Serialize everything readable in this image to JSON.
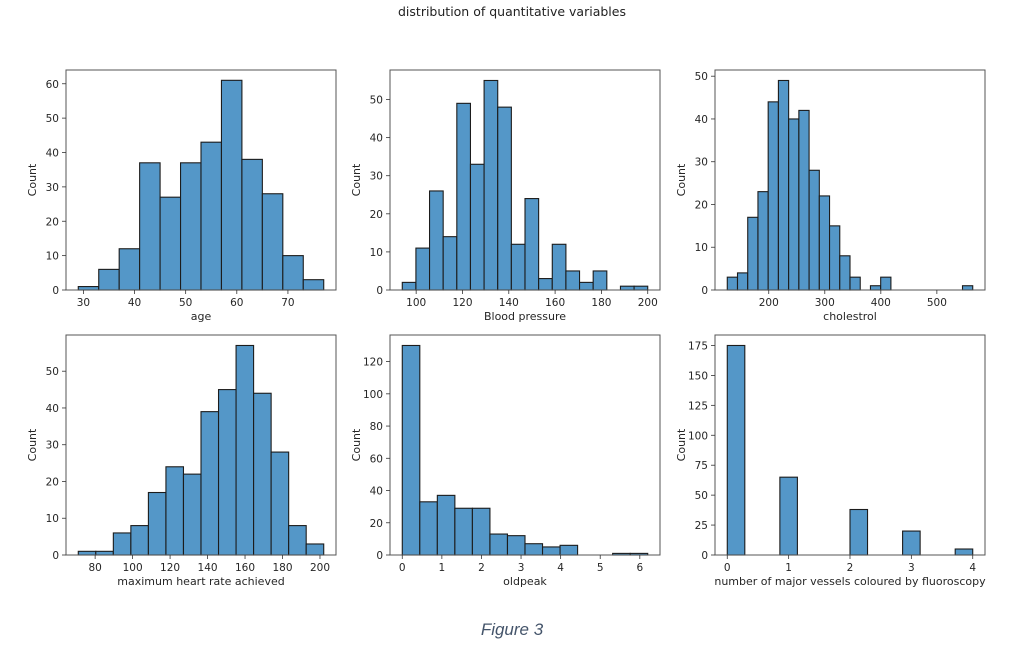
{
  "figure": {
    "title": "distribution of quantitative variables",
    "caption": "Figure 3",
    "bar_color": "#5497c8",
    "edge_color": "#1c1c1c"
  },
  "chart_data": [
    {
      "type": "bar",
      "name": "age",
      "xlabel": "age",
      "ylabel": "Count",
      "bin_start": 29,
      "bin_end": 77,
      "counts": [
        1,
        6,
        12,
        37,
        27,
        37,
        43,
        61,
        38,
        28,
        10,
        3
      ],
      "xlim": [
        26.6,
        79.4
      ],
      "ylim": [
        0,
        64
      ],
      "xticks": [
        30,
        40,
        50,
        60,
        70
      ],
      "yticks": [
        0,
        10,
        20,
        30,
        40,
        50,
        60
      ]
    },
    {
      "type": "bar",
      "name": "blood-pressure",
      "xlabel": "Blood pressure",
      "ylabel": "Count",
      "bin_start": 94,
      "bin_end": 200,
      "counts": [
        2,
        11,
        26,
        14,
        49,
        33,
        55,
        48,
        12,
        24,
        3,
        12,
        5,
        2,
        5,
        0,
        1,
        1
      ],
      "xlim": [
        88.7,
        205.3
      ],
      "ylim": [
        0,
        57.75
      ],
      "xticks": [
        100,
        120,
        140,
        160,
        180,
        200
      ],
      "yticks": [
        0,
        10,
        20,
        30,
        40,
        50
      ]
    },
    {
      "type": "bar",
      "name": "cholestrol",
      "xlabel": "cholestrol",
      "ylabel": "Count",
      "bin_start": 126,
      "bin_end": 564,
      "counts": [
        3,
        4,
        17,
        23,
        44,
        49,
        40,
        42,
        28,
        22,
        15,
        8,
        3,
        0,
        1,
        3,
        0,
        0,
        0,
        0,
        0,
        0,
        0,
        1
      ],
      "xlim": [
        104.1,
        585.9
      ],
      "ylim": [
        0,
        51.45
      ],
      "xticks": [
        200,
        300,
        400,
        500
      ],
      "yticks": [
        0,
        10,
        20,
        30,
        40,
        50
      ]
    },
    {
      "type": "bar",
      "name": "max-heart-rate",
      "xlabel": "maximum heart rate achieved",
      "ylabel": "Count",
      "bin_start": 71,
      "bin_end": 202,
      "counts": [
        1,
        1,
        6,
        8,
        17,
        24,
        22,
        39,
        45,
        57,
        44,
        28,
        8,
        3
      ],
      "xlim": [
        64.45,
        208.55
      ],
      "ylim": [
        0,
        59.85
      ],
      "xticks": [
        80,
        100,
        120,
        140,
        160,
        180,
        200
      ],
      "yticks": [
        0,
        10,
        20,
        30,
        40,
        50
      ]
    },
    {
      "type": "bar",
      "name": "oldpeak",
      "xlabel": "oldpeak",
      "ylabel": "Count",
      "bin_start": 0,
      "bin_end": 6.2,
      "counts": [
        130,
        33,
        37,
        29,
        29,
        13,
        12,
        7,
        5,
        6,
        0,
        0,
        1,
        1
      ],
      "xlim": [
        -0.31,
        6.51
      ],
      "ylim": [
        0,
        136.5
      ],
      "xticks": [
        0,
        1,
        2,
        3,
        4,
        5,
        6
      ],
      "yticks": [
        0,
        20,
        40,
        60,
        80,
        100,
        120
      ]
    },
    {
      "type": "bar",
      "name": "major-vessels",
      "xlabel": "number of major vessels coloured by fluoroscopy",
      "ylabel": "Count",
      "bin_start": 0,
      "bin_end": 4,
      "counts": [
        175,
        0,
        0,
        65,
        0,
        0,
        0,
        38,
        0,
        0,
        20,
        0,
        0,
        5
      ],
      "xlim": [
        -0.2,
        4.2
      ],
      "ylim": [
        0,
        183.75
      ],
      "xticks": [
        0,
        1,
        2,
        3,
        4
      ],
      "yticks": [
        0,
        25,
        50,
        75,
        100,
        125,
        150,
        175
      ],
      "bar_centers": [
        0,
        1,
        2,
        3,
        4
      ],
      "bar_counts": [
        175,
        65,
        38,
        20,
        5
      ]
    }
  ]
}
